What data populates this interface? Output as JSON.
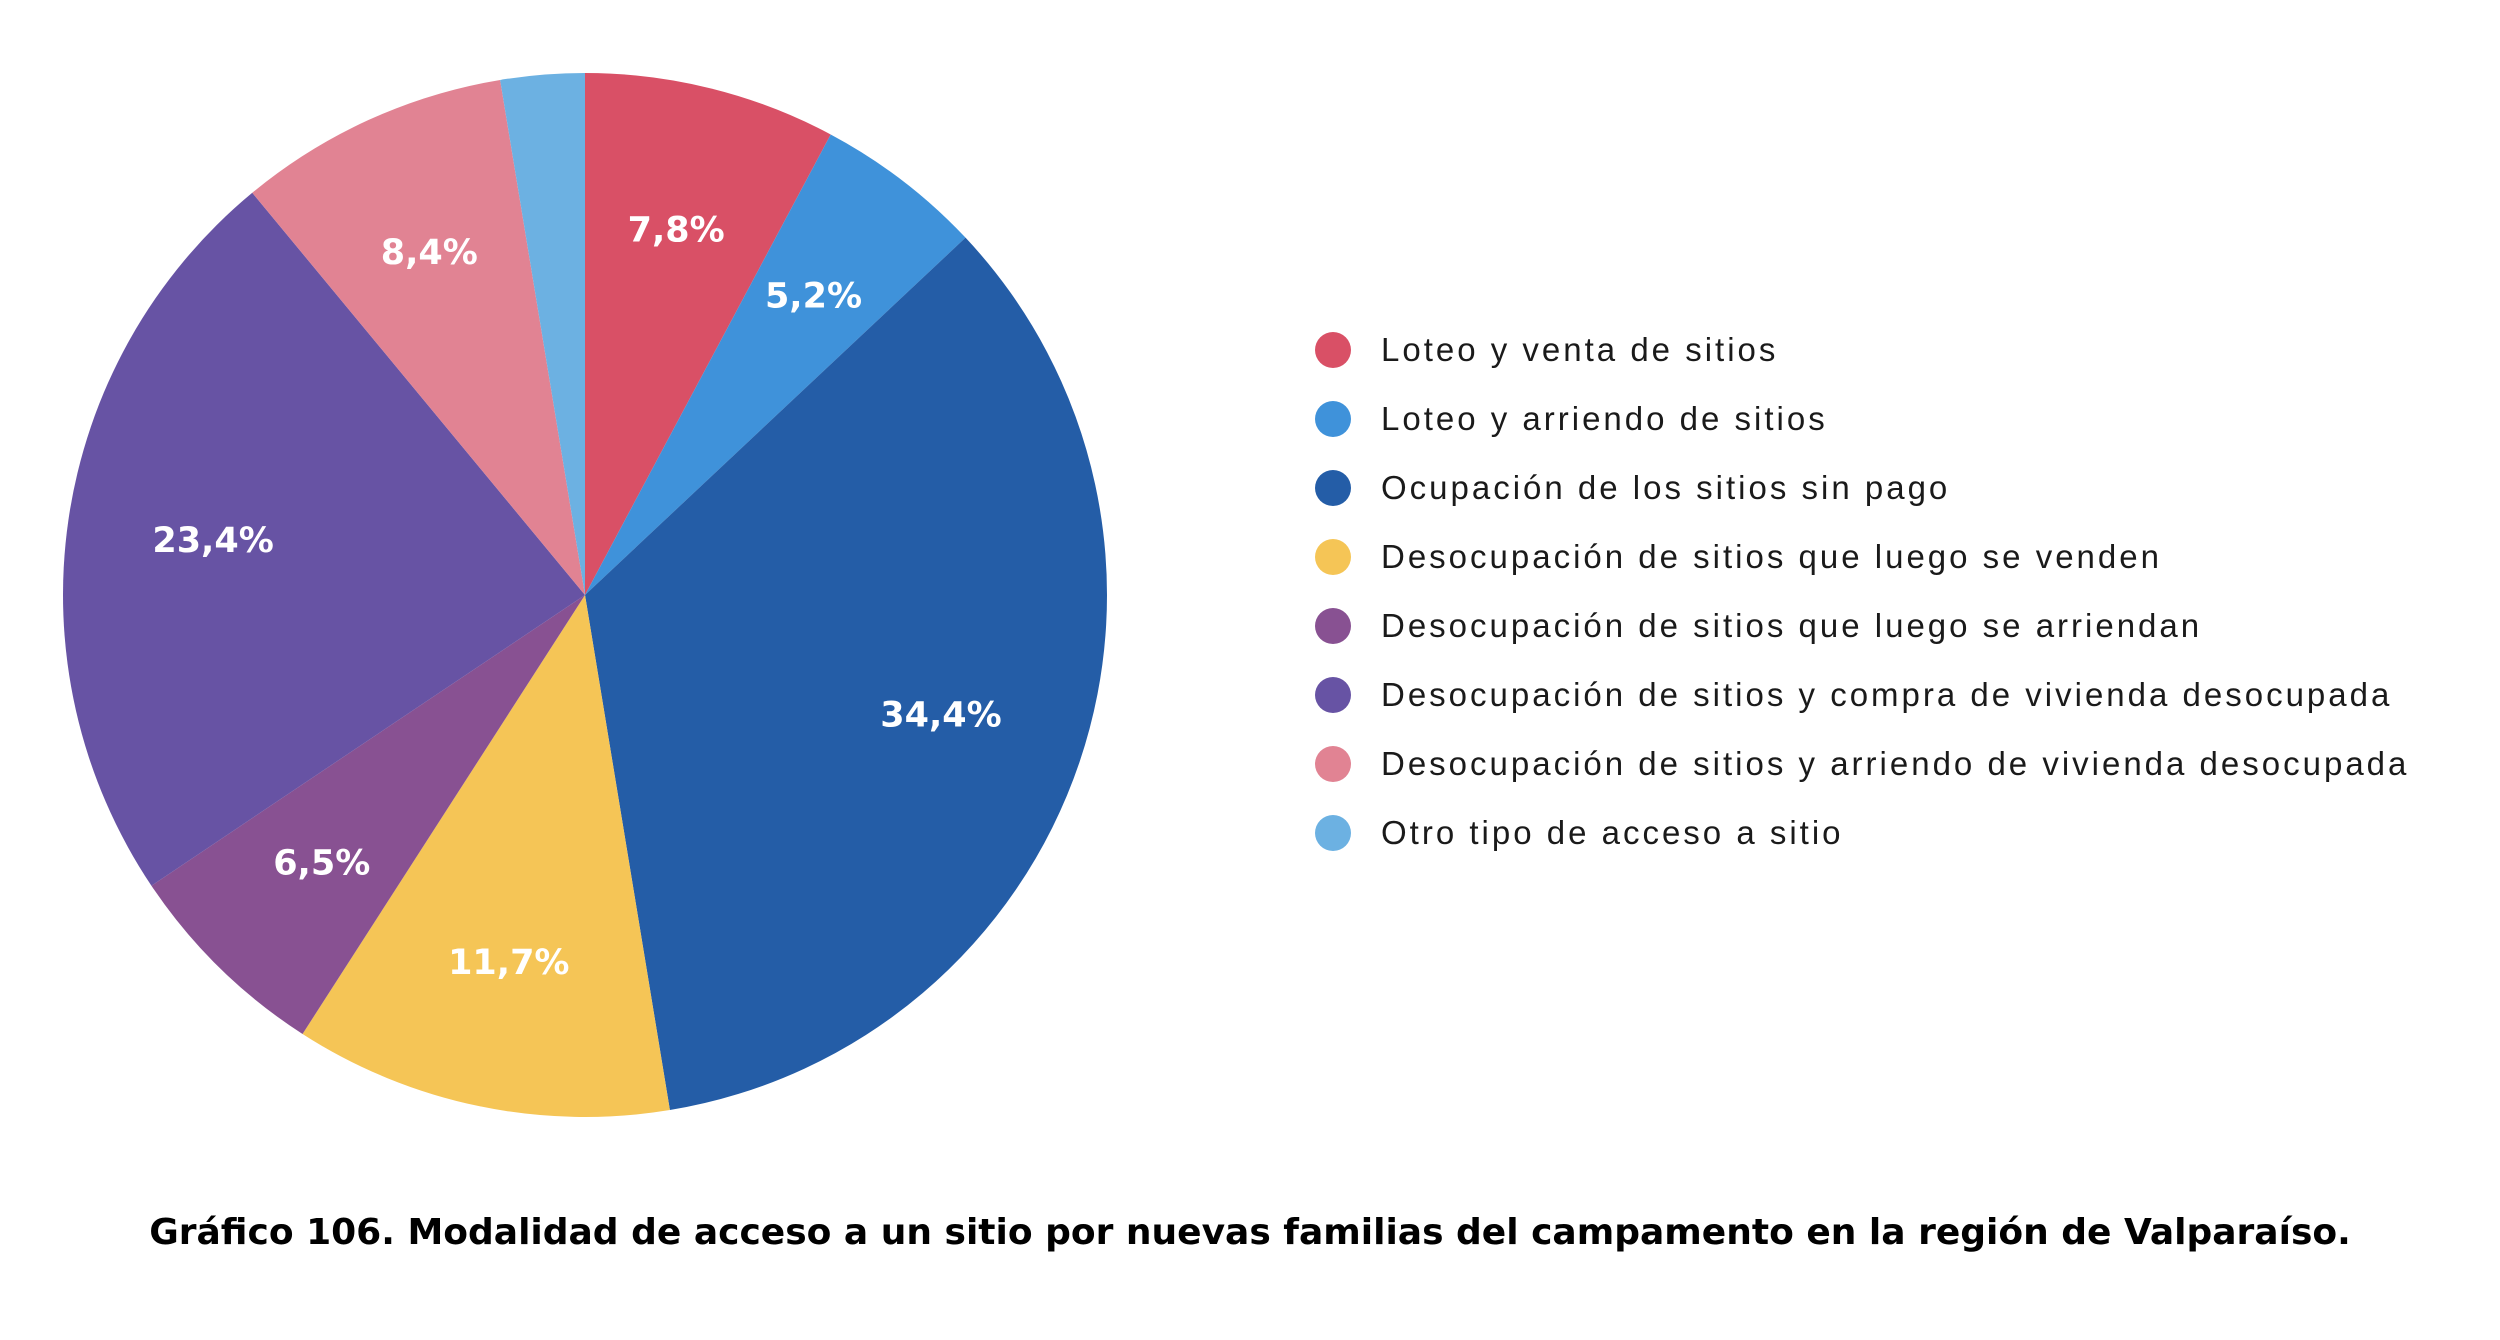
{
  "chart_data": {
    "type": "pie",
    "title": "",
    "start_angle": "12 o'clock",
    "direction": "clockwise",
    "legend_position": "right",
    "value_unit": "%",
    "slices": [
      {
        "label": "Loteo y venta de sitios",
        "value": 7.8,
        "display": "7,8%",
        "color": "#D95066"
      },
      {
        "label": "Loteo y arriendo de sitios",
        "value": 5.2,
        "display": "5,2%",
        "color": "#3F92DA"
      },
      {
        "label": "Ocupación de los sitios sin pago",
        "value": 34.4,
        "display": "34,4%",
        "color": "#245DA7"
      },
      {
        "label": "Desocupación de sitios que luego se venden",
        "value": 11.7,
        "display": "11,7%",
        "color": "#F5C556"
      },
      {
        "label": "Desocupación de sitios que luego se arriendan",
        "value": 6.5,
        "display": "6,5%",
        "color": "#885192"
      },
      {
        "label": "Desocupación de sitios y compra de vivienda desocupada",
        "value": 23.4,
        "display": "23,4%",
        "color": "#6753A4"
      },
      {
        "label": "Desocupación de sitios y arriendo de vivienda desocupada",
        "value": 8.4,
        "display": "8,4%",
        "color": "#E18393"
      },
      {
        "label": "Otro tipo de acceso a sitio",
        "value": 2.6,
        "display": "",
        "color": "#6CB1E2"
      }
    ]
  },
  "caption": "Gráfico 106. Modalidad de acceso a un sitio por nuevas familias del campamento en la región de Valparaíso."
}
